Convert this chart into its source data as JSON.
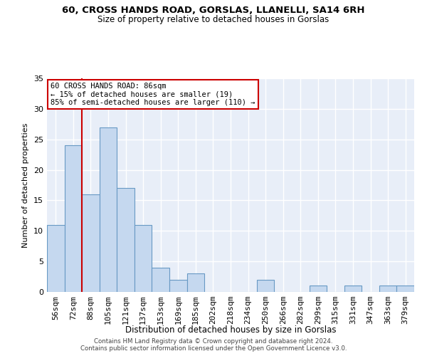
{
  "title": "60, CROSS HANDS ROAD, GORSLAS, LLANELLI, SA14 6RH",
  "subtitle": "Size of property relative to detached houses in Gorslas",
  "xlabel": "Distribution of detached houses by size in Gorslas",
  "ylabel": "Number of detached properties",
  "categories": [
    "56sqm",
    "72sqm",
    "88sqm",
    "105sqm",
    "121sqm",
    "137sqm",
    "153sqm",
    "169sqm",
    "185sqm",
    "202sqm",
    "218sqm",
    "234sqm",
    "250sqm",
    "266sqm",
    "282sqm",
    "299sqm",
    "315sqm",
    "331sqm",
    "347sqm",
    "363sqm",
    "379sqm"
  ],
  "values": [
    11,
    24,
    16,
    27,
    17,
    11,
    4,
    2,
    3,
    0,
    0,
    0,
    2,
    0,
    0,
    1,
    0,
    1,
    0,
    1,
    1
  ],
  "bar_color": "#c5d8ef",
  "bar_edge_color": "#6899c4",
  "annotation_text": "60 CROSS HANDS ROAD: 86sqm\n← 15% of detached houses are smaller (19)\n85% of semi-detached houses are larger (110) →",
  "annotation_box_color": "#ffffff",
  "annotation_box_edge_color": "#cc0000",
  "red_line_color": "#cc0000",
  "footer_line1": "Contains HM Land Registry data © Crown copyright and database right 2024.",
  "footer_line2": "Contains public sector information licensed under the Open Government Licence v3.0.",
  "ylim": [
    0,
    35
  ],
  "background_color": "#e8eef8",
  "grid_color": "#ffffff",
  "yticks": [
    0,
    5,
    10,
    15,
    20,
    25,
    30,
    35
  ]
}
